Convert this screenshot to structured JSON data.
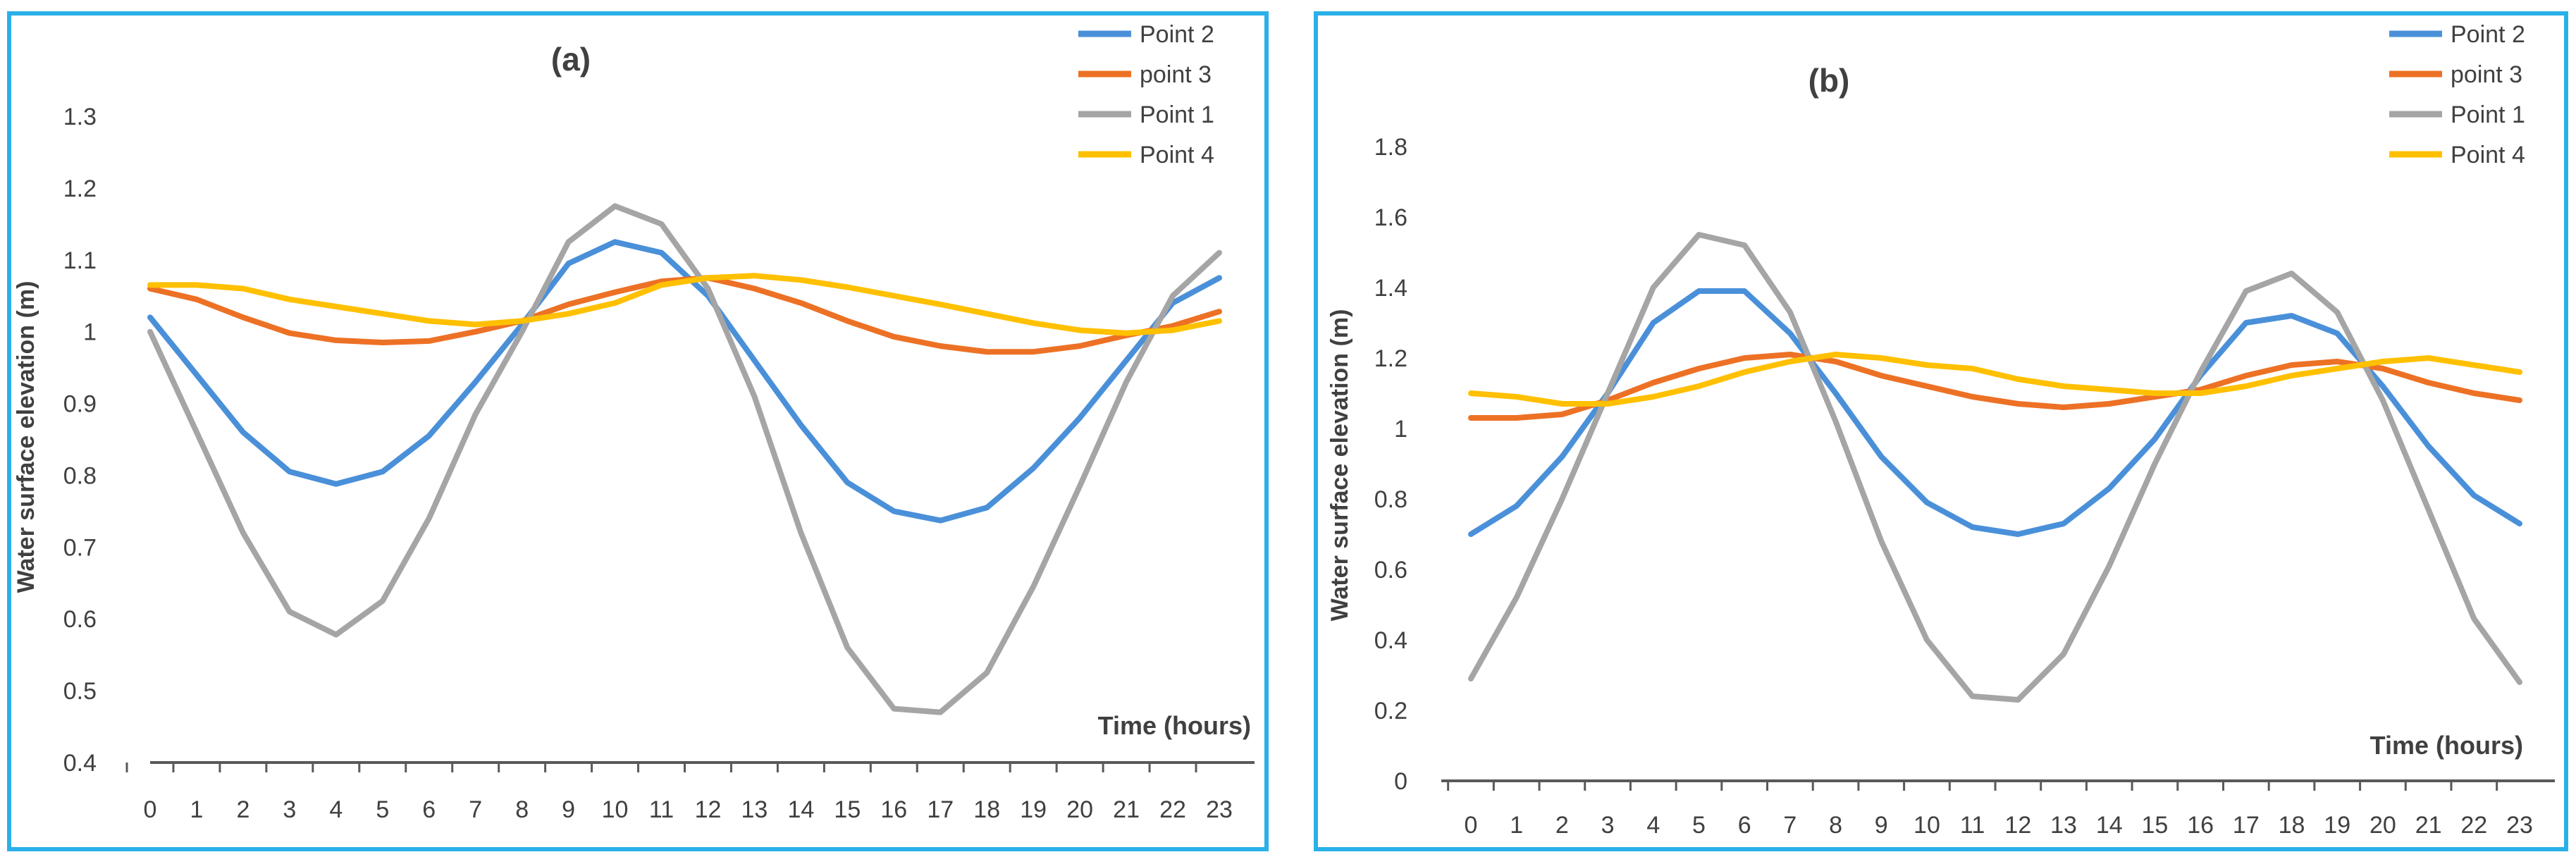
{
  "chart_data": [
    {
      "type": "line",
      "title": "(a)",
      "xlabel": "Time (hours)",
      "ylabel": "Water surface elevation (m)",
      "categories": [
        "0",
        "1",
        "2",
        "3",
        "4",
        "5",
        "6",
        "7",
        "8",
        "9",
        "10",
        "11",
        "12",
        "13",
        "14",
        "15",
        "16",
        "17",
        "18",
        "19",
        "20",
        "21",
        "22",
        "23"
      ],
      "yticks": [
        "0.4",
        "0.5",
        "0.6",
        "0.7",
        "0.8",
        "0.9",
        "1",
        "1.1",
        "1.2",
        "1.3"
      ],
      "ylim": [
        0.4,
        1.3
      ],
      "legend": "top-right",
      "series": [
        {
          "name": "Point 2",
          "color": "#4a90d9",
          "values": [
            1.02,
            0.94,
            0.86,
            0.805,
            0.788,
            0.805,
            0.855,
            0.93,
            1.01,
            1.095,
            1.125,
            1.11,
            1.05,
            0.96,
            0.87,
            0.79,
            0.75,
            0.737,
            0.755,
            0.81,
            0.88,
            0.96,
            1.04,
            1.075
          ]
        },
        {
          "name": "point 3",
          "color": "#ed7125",
          "values": [
            1.06,
            1.045,
            1.02,
            0.998,
            0.988,
            0.985,
            0.987,
            1.0,
            1.015,
            1.038,
            1.055,
            1.07,
            1.075,
            1.06,
            1.04,
            1.015,
            0.993,
            0.98,
            0.972,
            0.972,
            0.98,
            0.995,
            1.008,
            1.028
          ]
        },
        {
          "name": "Point 1",
          "color": "#a5a5a5",
          "values": [
            1.0,
            0.86,
            0.72,
            0.61,
            0.578,
            0.625,
            0.74,
            0.885,
            1.0,
            1.125,
            1.175,
            1.15,
            1.06,
            0.91,
            0.72,
            0.56,
            0.475,
            0.47,
            0.525,
            0.645,
            0.785,
            0.93,
            1.05,
            1.11
          ]
        },
        {
          "name": "Point 4",
          "color": "#ffc000",
          "values": [
            1.065,
            1.065,
            1.06,
            1.045,
            1.035,
            1.025,
            1.015,
            1.01,
            1.015,
            1.025,
            1.04,
            1.065,
            1.075,
            1.078,
            1.072,
            1.062,
            1.05,
            1.038,
            1.025,
            1.012,
            1.002,
            0.998,
            1.002,
            1.015
          ]
        }
      ]
    },
    {
      "type": "line",
      "title": "(b)",
      "xlabel": "Time (hours)",
      "ylabel": "Water surface elevation (m)",
      "categories": [
        "0",
        "1",
        "2",
        "3",
        "4",
        "5",
        "6",
        "7",
        "8",
        "9",
        "10",
        "11",
        "12",
        "13",
        "14",
        "15",
        "16",
        "17",
        "18",
        "19",
        "20",
        "21",
        "22",
        "23"
      ],
      "yticks": [
        "0",
        "0.2",
        "0.4",
        "0.6",
        "0.8",
        "1",
        "1.2",
        "1.4",
        "1.6",
        "1.8"
      ],
      "ylim": [
        0,
        1.8
      ],
      "legend": "top-right",
      "series": [
        {
          "name": "Point 2",
          "color": "#4a90d9",
          "values": [
            0.7,
            0.78,
            0.92,
            1.1,
            1.3,
            1.39,
            1.39,
            1.27,
            1.1,
            0.92,
            0.79,
            0.72,
            0.7,
            0.73,
            0.83,
            0.97,
            1.15,
            1.3,
            1.32,
            1.27,
            1.12,
            0.95,
            0.81,
            0.73
          ]
        },
        {
          "name": "point 3",
          "color": "#ed7125",
          "values": [
            1.03,
            1.03,
            1.04,
            1.08,
            1.13,
            1.17,
            1.2,
            1.21,
            1.19,
            1.15,
            1.12,
            1.09,
            1.07,
            1.06,
            1.07,
            1.09,
            1.11,
            1.15,
            1.18,
            1.19,
            1.17,
            1.13,
            1.1,
            1.08
          ]
        },
        {
          "name": "Point 1",
          "color": "#a5a5a5",
          "values": [
            0.29,
            0.52,
            0.8,
            1.1,
            1.4,
            1.55,
            1.52,
            1.33,
            1.02,
            0.68,
            0.4,
            0.24,
            0.23,
            0.36,
            0.61,
            0.9,
            1.16,
            1.39,
            1.44,
            1.33,
            1.08,
            0.77,
            0.46,
            0.28
          ]
        },
        {
          "name": "Point 4",
          "color": "#ffc000",
          "values": [
            1.1,
            1.09,
            1.07,
            1.07,
            1.09,
            1.12,
            1.16,
            1.19,
            1.21,
            1.2,
            1.18,
            1.17,
            1.14,
            1.12,
            1.11,
            1.1,
            1.1,
            1.12,
            1.15,
            1.17,
            1.19,
            1.2,
            1.18,
            1.16
          ]
        }
      ]
    }
  ]
}
